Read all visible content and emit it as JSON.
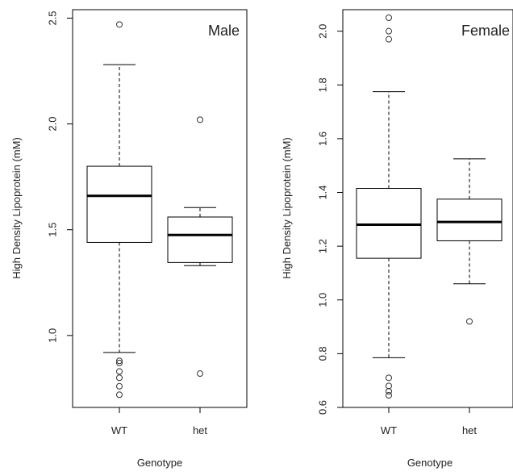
{
  "chart_data": [
    {
      "type": "boxplot",
      "title": "Male",
      "xlabel": "Genotype",
      "ylabel": "High Density Lipoprotein (mM)",
      "categories": [
        "WT",
        "het"
      ],
      "ylim": [
        0.66,
        2.54
      ],
      "yticks": [
        1.0,
        1.5,
        2.0,
        2.5
      ],
      "ytick_labels": [
        "1.0",
        "1.5",
        "2.0",
        "2.5"
      ],
      "boxes": [
        {
          "category": "WT",
          "whisker_low": 0.92,
          "q1": 1.44,
          "median": 1.66,
          "q3": 1.8,
          "whisker_high": 2.28,
          "outliers": [
            2.47,
            0.88,
            0.87,
            0.83,
            0.8,
            0.76,
            0.72
          ]
        },
        {
          "category": "het",
          "whisker_low": 1.33,
          "q1": 1.345,
          "median": 1.475,
          "q3": 1.56,
          "whisker_high": 1.605,
          "outliers": [
            2.02,
            0.82
          ]
        }
      ]
    },
    {
      "type": "boxplot",
      "title": "Female",
      "xlabel": "Genotype",
      "ylabel": "High Density Lipoprotein (mM)",
      "categories": [
        "WT",
        "het"
      ],
      "ylim": [
        0.6,
        2.08
      ],
      "yticks": [
        0.6,
        0.8,
        1.0,
        1.2,
        1.4,
        1.6,
        1.8,
        2.0
      ],
      "ytick_labels": [
        "0.6",
        "0.8",
        "1.0",
        "1.2",
        "1.4",
        "1.6",
        "1.8",
        "2.0"
      ],
      "boxes": [
        {
          "category": "WT",
          "whisker_low": 0.785,
          "q1": 1.155,
          "median": 1.28,
          "q3": 1.415,
          "whisker_high": 1.775,
          "outliers": [
            2.05,
            2.0,
            1.97,
            0.71,
            0.68,
            0.66,
            0.645
          ]
        },
        {
          "category": "het",
          "whisker_low": 1.06,
          "q1": 1.22,
          "median": 1.29,
          "q3": 1.375,
          "whisker_high": 1.525,
          "outliers": [
            0.92
          ]
        }
      ]
    }
  ]
}
